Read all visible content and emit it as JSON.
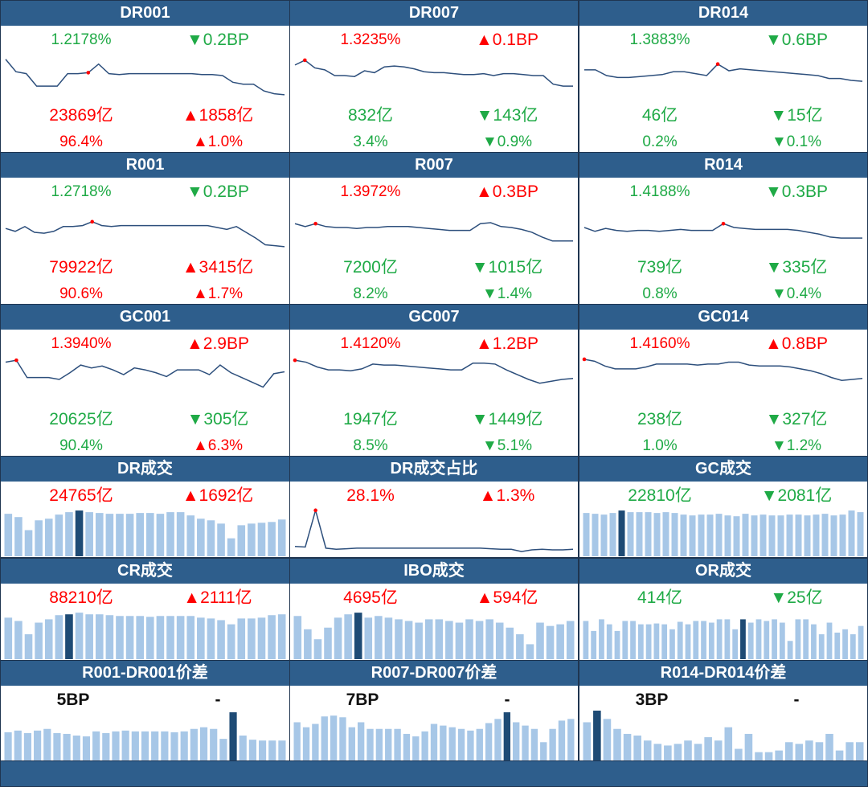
{
  "colors": {
    "header": "#2e5e8c",
    "up": "#ff0000",
    "down": "#1faa46",
    "line": "#2d4f7c",
    "bar": "#a7c7e7",
    "bar_hi": "#1e4b75"
  },
  "rate_panels": [
    {
      "title": "DR001",
      "rate": "1.2178%",
      "rate_color": "down",
      "change": "▼0.2BP",
      "change_color": "down",
      "volume": "23869亿",
      "volume_color": "up",
      "volume_change": "▲1858亿",
      "volume_change_color": "up",
      "share": "96.4%",
      "share_color": "up",
      "share_change": "▲1.0%",
      "share_change_color": "up",
      "series": [
        73,
        60,
        58,
        45,
        45,
        45,
        58,
        58,
        59,
        68,
        58,
        57,
        58,
        58,
        58,
        58,
        58,
        58,
        58,
        57,
        57,
        56,
        49,
        47,
        47,
        40,
        37,
        36
      ],
      "marker": 8
    },
    {
      "title": "DR007",
      "rate": "1.3235%",
      "rate_color": "up",
      "change": "▲0.1BP",
      "change_color": "up",
      "volume": "832亿",
      "volume_color": "down",
      "volume_change": "▼143亿",
      "volume_change_color": "down",
      "share": "3.4%",
      "share_color": "down",
      "share_change": "▼0.9%",
      "share_change_color": "down",
      "series": [
        67,
        72,
        64,
        62,
        56,
        56,
        55,
        61,
        59,
        65,
        66,
        65,
        63,
        60,
        59,
        59,
        58,
        57,
        57,
        58,
        56,
        58,
        58,
        57,
        56,
        56,
        47,
        45,
        45
      ],
      "marker": 1
    },
    {
      "title": "DR014",
      "rate": "1.3883%",
      "rate_color": "down",
      "change": "▼0.6BP",
      "change_color": "down",
      "volume": "46亿",
      "volume_color": "down",
      "volume_change": "▼15亿",
      "volume_change_color": "down",
      "share": "0.2%",
      "share_color": "down",
      "share_change": "▼0.1%",
      "share_change_color": "down",
      "series": [
        62,
        62,
        56,
        54,
        54,
        55,
        56,
        57,
        60,
        60,
        58,
        56,
        68,
        61,
        63,
        62,
        61,
        60,
        59,
        58,
        57,
        56,
        53,
        53,
        51,
        50
      ],
      "marker": 12
    },
    {
      "title": "R001",
      "rate": "1.2718%",
      "rate_color": "down",
      "change": "▼0.2BP",
      "change_color": "down",
      "volume": "79922亿",
      "volume_color": "up",
      "volume_change": "▲3415亿",
      "volume_change_color": "up",
      "share": "90.6%",
      "share_color": "up",
      "share_change": "▲1.7%",
      "share_change_color": "up",
      "series": [
        55,
        52,
        57,
        51,
        50,
        52,
        57,
        57,
        58,
        62,
        58,
        57,
        58,
        58,
        58,
        58,
        58,
        58,
        58,
        58,
        58,
        58,
        56,
        54,
        57,
        51,
        45,
        38,
        37,
        36
      ],
      "marker": 9
    },
    {
      "title": "R007",
      "rate": "1.3972%",
      "rate_color": "up",
      "change": "▲0.3BP",
      "change_color": "up",
      "volume": "7200亿",
      "volume_color": "down",
      "volume_change": "▼1015亿",
      "volume_change_color": "down",
      "share": "8.2%",
      "share_color": "down",
      "share_change": "▼1.4%",
      "share_change_color": "down",
      "series": [
        60,
        57,
        60,
        57,
        56,
        56,
        55,
        56,
        56,
        57,
        57,
        57,
        56,
        55,
        54,
        53,
        53,
        53,
        60,
        61,
        57,
        56,
        54,
        51,
        46,
        42,
        42,
        42
      ],
      "marker": 2
    },
    {
      "title": "R014",
      "rate": "1.4188%",
      "rate_color": "down",
      "change": "▼0.3BP",
      "change_color": "down",
      "volume": "739亿",
      "volume_color": "down",
      "volume_change": "▼335亿",
      "volume_change_color": "down",
      "share": "0.8%",
      "share_color": "down",
      "share_change": "▼0.4%",
      "share_change_color": "down",
      "series": [
        56,
        52,
        55,
        53,
        52,
        53,
        53,
        52,
        53,
        54,
        53,
        53,
        53,
        60,
        56,
        55,
        54,
        54,
        54,
        54,
        53,
        51,
        49,
        46,
        45,
        45,
        45
      ],
      "marker": 13
    },
    {
      "title": "GC001",
      "rate": "1.3940%",
      "rate_color": "up",
      "change": "▲2.9BP",
      "change_color": "up",
      "volume": "20625亿",
      "volume_color": "down",
      "volume_change": "▼305亿",
      "volume_change_color": "down",
      "share": "90.4%",
      "share_color": "down",
      "share_change": "▲6.3%",
      "share_change_color": "up",
      "series": [
        74,
        76,
        58,
        58,
        58,
        56,
        63,
        71,
        68,
        70,
        66,
        61,
        68,
        66,
        63,
        59,
        66,
        66,
        66,
        61,
        71,
        63,
        58,
        53,
        48,
        62,
        64
      ],
      "marker": 1
    },
    {
      "title": "GC007",
      "rate": "1.4120%",
      "rate_color": "up",
      "change": "▲1.2BP",
      "change_color": "up",
      "volume": "1947亿",
      "volume_color": "down",
      "volume_change": "▼1449亿",
      "volume_change_color": "down",
      "share": "8.5%",
      "share_color": "down",
      "share_change": "▼5.1%",
      "share_change_color": "down",
      "series": [
        76,
        74,
        69,
        66,
        66,
        65,
        67,
        72,
        71,
        71,
        70,
        69,
        68,
        67,
        66,
        66,
        73,
        73,
        72,
        66,
        61,
        56,
        52,
        54,
        56,
        57
      ],
      "marker": 0
    },
    {
      "title": "GC014",
      "rate": "1.4160%",
      "rate_color": "up",
      "change": "▲0.8BP",
      "change_color": "up",
      "volume": "238亿",
      "volume_color": "down",
      "volume_change": "▼327亿",
      "volume_change_color": "down",
      "share": "1.0%",
      "share_color": "down",
      "share_change": "▼1.2%",
      "share_change_color": "down",
      "series": [
        77,
        75,
        70,
        67,
        67,
        67,
        69,
        72,
        72,
        72,
        72,
        71,
        72,
        72,
        74,
        74,
        71,
        70,
        70,
        70,
        69,
        67,
        65,
        62,
        58,
        55,
        56,
        57
      ],
      "marker": 0
    }
  ],
  "volume_panels": [
    {
      "title": "DR成交",
      "chart": "bar",
      "value": "24765亿",
      "value_color": "up",
      "change": "▲1692亿",
      "change_color": "up",
      "series": [
        52,
        48,
        32,
        44,
        46,
        51,
        54,
        56,
        54,
        53,
        52,
        52,
        52,
        53,
        53,
        52,
        54,
        54,
        50,
        46,
        44,
        40,
        22,
        38,
        40,
        41,
        42,
        45
      ],
      "highlight": 7
    },
    {
      "title": "DR成交占比",
      "chart": "line",
      "value": "28.1%",
      "value_color": "up",
      "change": "▲1.3%",
      "change_color": "up",
      "series": [
        33,
        32,
        96,
        30,
        28,
        29,
        30,
        30,
        30,
        30,
        30,
        30,
        30,
        30,
        30,
        30,
        30,
        30,
        30,
        29,
        28,
        28,
        24,
        27,
        28,
        27,
        27,
        28
      ],
      "marker": 2
    },
    {
      "title": "GC成交",
      "chart": "bar",
      "value": "22810亿",
      "value_color": "down",
      "change": "▼2081亿",
      "change_color": "down",
      "series": [
        53,
        52,
        51,
        53,
        56,
        54,
        54,
        54,
        53,
        54,
        53,
        51,
        50,
        51,
        51,
        52,
        50,
        49,
        52,
        50,
        51,
        50,
        50,
        51,
        51,
        50,
        51,
        52,
        50,
        51,
        56,
        54
      ],
      "highlight": 4
    },
    {
      "title": "CR成交",
      "chart": "bar",
      "value": "88210亿",
      "value_color": "up",
      "change": "▲2111亿",
      "change_color": "up",
      "series": [
        50,
        46,
        30,
        44,
        48,
        53,
        54,
        56,
        54,
        54,
        53,
        52,
        52,
        52,
        51,
        52,
        52,
        52,
        52,
        50,
        49,
        47,
        42,
        49,
        49,
        50,
        53,
        54
      ],
      "highlight": 6
    },
    {
      "title": "IBO成交",
      "chart": "bar",
      "value": "4695亿",
      "value_color": "up",
      "change": "▲594亿",
      "change_color": "up",
      "series": [
        52,
        36,
        24,
        38,
        50,
        54,
        56,
        50,
        52,
        50,
        48,
        46,
        44,
        48,
        48,
        46,
        44,
        48,
        46,
        48,
        44,
        38,
        30,
        18,
        44,
        40,
        42,
        46
      ],
      "highlight": 6
    },
    {
      "title": "OR成交",
      "chart": "bar",
      "value": "414亿",
      "value_color": "down",
      "change": "▼25亿",
      "change_color": "down",
      "series": [
        46,
        34,
        48,
        42,
        34,
        46,
        46,
        42,
        42,
        43,
        42,
        36,
        45,
        42,
        46,
        46,
        44,
        48,
        48,
        36,
        48,
        44,
        48,
        46,
        48,
        44,
        22,
        48,
        48,
        42,
        30,
        44,
        32,
        36,
        30,
        40
      ],
      "highlight": 20
    }
  ],
  "spread_panels": [
    {
      "title": "R001-DR001价差",
      "value": "5BP",
      "change": "-",
      "series": [
        34,
        36,
        33,
        36,
        38,
        33,
        32,
        30,
        29,
        35,
        33,
        35,
        36,
        35,
        35,
        35,
        35,
        34,
        35,
        38,
        40,
        38,
        26,
        58,
        30,
        25,
        24,
        24,
        24
      ],
      "highlight": 23
    },
    {
      "title": "R007-DR007价差",
      "value": "7BP",
      "change": "-",
      "series": [
        46,
        40,
        44,
        53,
        54,
        52,
        40,
        46,
        38,
        38,
        38,
        38,
        32,
        29,
        35,
        44,
        42,
        40,
        38,
        36,
        38,
        45,
        50,
        58,
        46,
        42,
        38,
        22,
        38,
        48,
        50
      ],
      "highlight": 23
    },
    {
      "title": "R014-DR014价差",
      "value": "3BP",
      "change": "-",
      "series": [
        46,
        60,
        50,
        38,
        32,
        30,
        24,
        20,
        18,
        20,
        24,
        20,
        28,
        24,
        40,
        14,
        32,
        10,
        10,
        12,
        22,
        20,
        24,
        22,
        32,
        12,
        22,
        22
      ],
      "highlight": 1
    }
  ]
}
